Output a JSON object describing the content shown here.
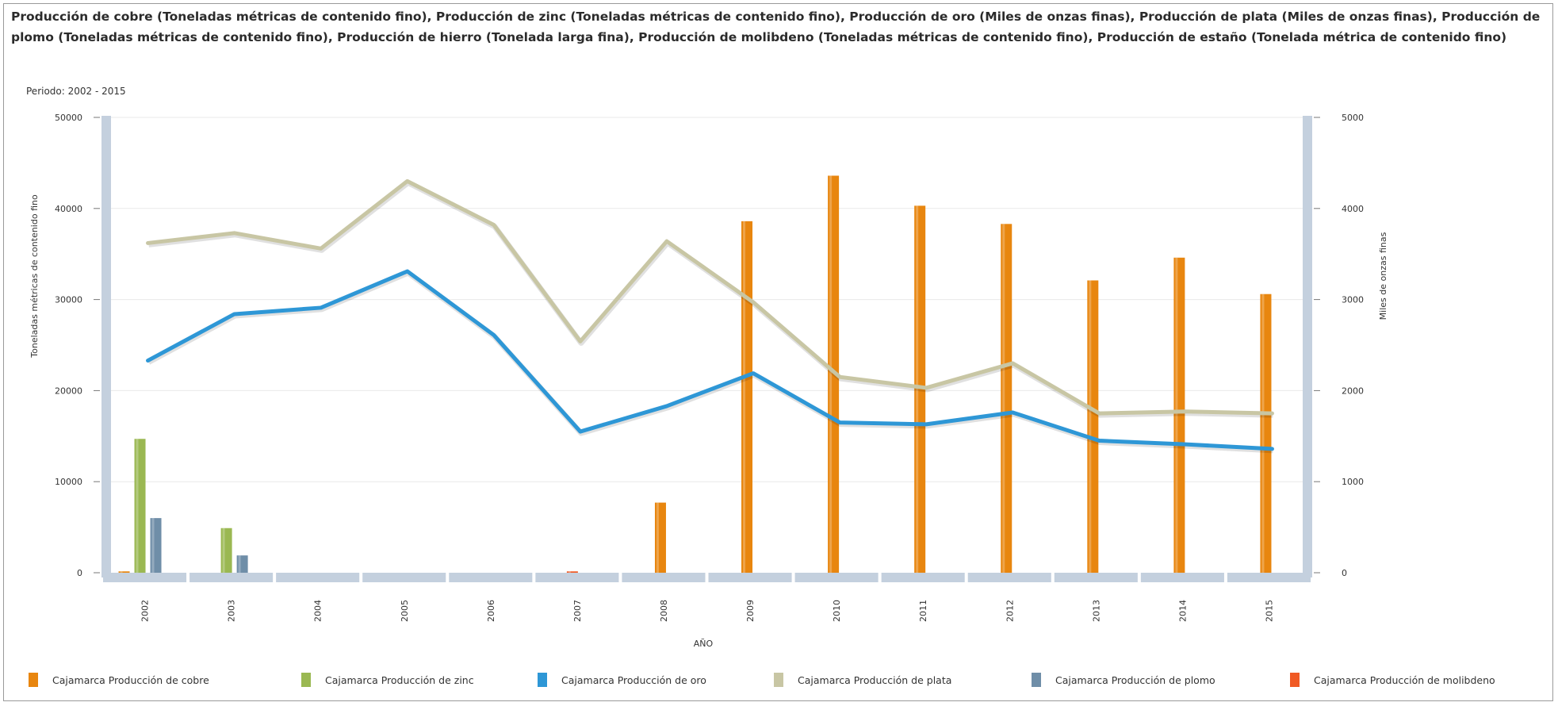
{
  "title": "Producción de cobre (Toneladas métricas de contenido fino), Producción de zinc (Toneladas métricas de contenido fino), Producción de oro (Miles de onzas finas), Producción de plata (Miles de onzas finas), Producción de plomo (Toneladas métricas de contenido fino), Producción de hierro (Tonelada larga fina), Producción de molibdeno (Toneladas métricas de contenido fino), Producción de estaño (Tonelada métrica de contenido fino)",
  "period": "Periodo: 2002 - 2015",
  "colors": {
    "cobre": "#e8860f",
    "zinc": "#9ab852",
    "oro": "#2e97d6",
    "plata": "#c8c6a4",
    "plomo": "#6f8ea8",
    "molibdeno": "#f05a24",
    "axis_bar": "#c4d0de",
    "grid": "#e9e9e9"
  },
  "chart_data": {
    "type": "bar",
    "categories": [
      "2002",
      "2003",
      "2004",
      "2005",
      "2006",
      "2007",
      "2008",
      "2009",
      "2010",
      "2011",
      "2012",
      "2013",
      "2014",
      "2015"
    ],
    "xlabel": "AÑO",
    "ylabel": "Toneladas métricas de contenido fino",
    "ylim": [
      0,
      50000
    ],
    "yticks": [
      "0",
      "10000",
      "20000",
      "30000",
      "40000",
      "50000"
    ],
    "y2label": "Miles de onzas finas",
    "y2lim": [
      0,
      5000
    ],
    "y2ticks": [
      "0",
      "1000",
      "2000",
      "3000",
      "4000",
      "5000"
    ],
    "grid": true,
    "legend_position": "bottom",
    "series": [
      {
        "name": "Cajamarca Producción de cobre",
        "type": "bar",
        "axis": "left",
        "values": [
          150,
          0,
          0,
          0,
          0,
          0,
          7700,
          38600,
          43600,
          40300,
          38300,
          32100,
          34600,
          30600
        ]
      },
      {
        "name": "Cajamarca Producción de zinc",
        "type": "bar",
        "axis": "left",
        "values": [
          14700,
          4900,
          0,
          0,
          0,
          0,
          0,
          0,
          0,
          0,
          0,
          0,
          0,
          0
        ]
      },
      {
        "name": "Cajamarca Producción de oro",
        "type": "line",
        "axis": "right",
        "values": [
          2330,
          2840,
          2910,
          3310,
          2610,
          1550,
          1830,
          2190,
          1650,
          1630,
          1760,
          1450,
          1410,
          1360
        ]
      },
      {
        "name": "Cajamarca Producción de plata",
        "type": "line",
        "axis": "right",
        "values": [
          3620,
          3730,
          3560,
          4300,
          3820,
          2540,
          3640,
          2970,
          2150,
          2030,
          2300,
          1750,
          1770,
          1750
        ]
      },
      {
        "name": "Cajamarca Producción de plomo",
        "type": "bar",
        "axis": "left",
        "values": [
          6000,
          1900,
          0,
          0,
          0,
          0,
          0,
          0,
          0,
          0,
          0,
          0,
          0,
          0
        ]
      },
      {
        "name": "Cajamarca Producción de molibdeno",
        "type": "bar",
        "axis": "left",
        "values": [
          0,
          0,
          0,
          0,
          0,
          150,
          0,
          0,
          0,
          0,
          0,
          0,
          0,
          0
        ]
      }
    ]
  }
}
